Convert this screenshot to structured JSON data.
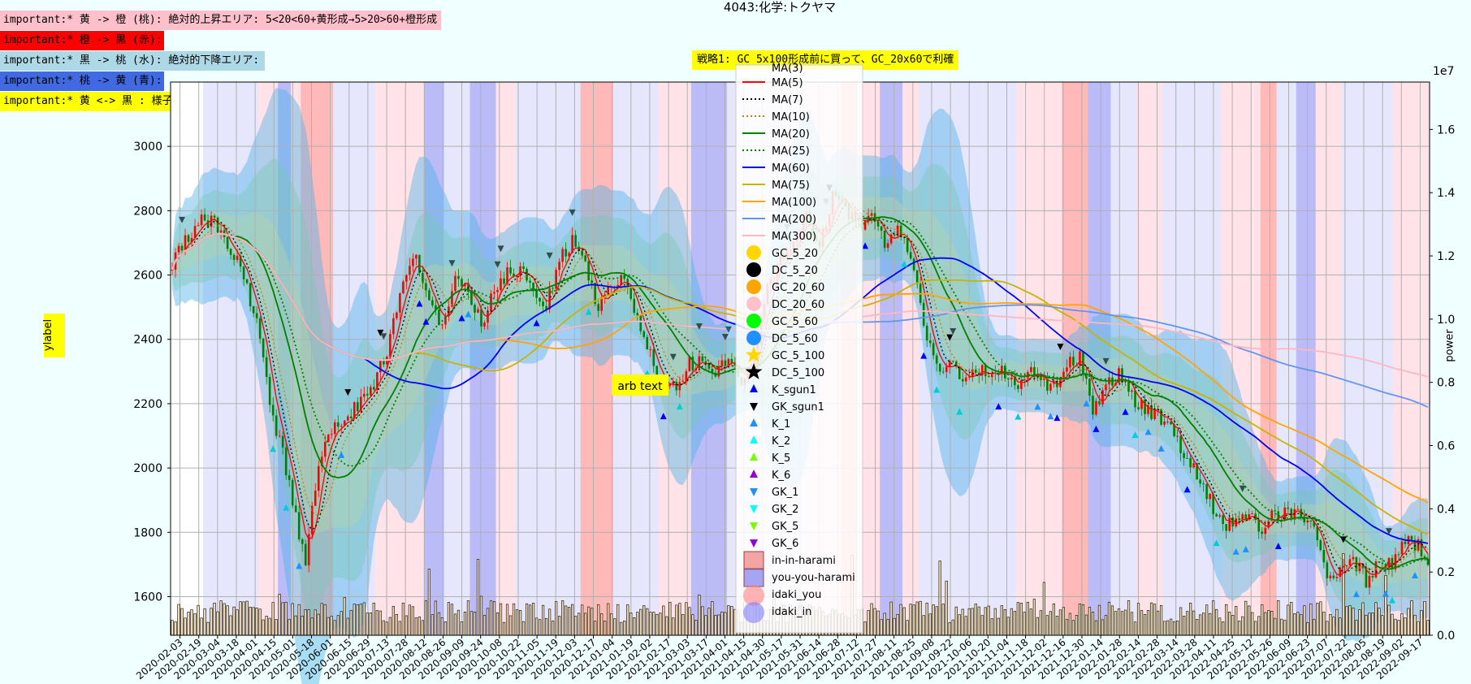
{
  "title": "4043:化学:トクヤマ",
  "notes": [
    {
      "text": "important:* 黄 -> 橙 (桃): 絶対的上昇エリア: 5<20<60+黄形成→5>20>60+橙形成",
      "bg": "#ffc0cb"
    },
    {
      "text": "important:* 橙 -> 黒 (赤):",
      "bg": "#ff0000"
    },
    {
      "text": "important:* 黒 -> 桃 (水): 絶対的下降エリア:",
      "bg": "#add8e6"
    },
    {
      "text": "important:* 桃 -> 黄 (青):",
      "bg": "#4169e1"
    },
    {
      "text": "important:* 黄 <-> 黒 : 様子見:",
      "bg": "#ffff00"
    }
  ],
  "strategy_text": "戦略1: GC_5x100形成前に買って、GC_20x60で利確",
  "annotation": "arb text",
  "ylabel": "ylabel",
  "y2label": "power",
  "y2_exponent": "1e7",
  "chart_data": {
    "type": "line",
    "ylim": [
      1480,
      3200
    ],
    "y2lim": [
      0,
      1.75
    ],
    "yticks": [
      1600,
      1800,
      2000,
      2200,
      2400,
      2600,
      2800,
      3000
    ],
    "y2ticks": [
      "0.0",
      "0.2",
      "0.4",
      "0.6",
      "0.8",
      "1.0",
      "1.2",
      "1.4",
      "1.6"
    ],
    "xtick_labels": [
      "2020-02-03",
      "2020-02-19",
      "2020-03-04",
      "2020-03-18",
      "2020-04-01",
      "2020-04-15",
      "2020-05-01",
      "2020-05-18",
      "2020-06-01",
      "2020-06-15",
      "2020-06-29",
      "2020-07-13",
      "2020-07-28",
      "2020-08-12",
      "2020-08-26",
      "2020-09-09",
      "2020-09-24",
      "2020-10-08",
      "2020-10-22",
      "2020-11-05",
      "2020-11-19",
      "2020-12-03",
      "2020-12-17",
      "2021-01-04",
      "2021-01-19",
      "2021-02-02",
      "2021-02-17",
      "2021-03-03",
      "2021-03-17",
      "2021-04-01",
      "2021-04-15",
      "2021-04-30",
      "2021-05-17",
      "2021-05-31",
      "2021-06-14",
      "2021-06-28",
      "2021-07-12",
      "2021-07-27",
      "2021-08-11",
      "2021-08-25",
      "2021-09-08",
      "2021-09-22",
      "2021-10-06",
      "2021-10-20",
      "2021-11-04",
      "2021-11-18",
      "2021-12-02",
      "2021-12-16",
      "2021-12-30",
      "2022-01-14",
      "2022-01-28",
      "2022-02-14",
      "2022-02-28",
      "2022-03-14",
      "2022-03-28",
      "2022-04-11",
      "2022-04-25",
      "2022-05-12",
      "2022-05-26",
      "2022-06-09",
      "2022-06-23",
      "2022-07-07",
      "2022-07-22",
      "2022-08-05",
      "2022-08-19",
      "2022-09-02",
      "2022-09-17"
    ],
    "close_anchors": [
      [
        0,
        2640
      ],
      [
        4,
        2700
      ],
      [
        8,
        2760
      ],
      [
        12,
        2780
      ],
      [
        16,
        2720
      ],
      [
        22,
        2600
      ],
      [
        26,
        2450
      ],
      [
        30,
        2200
      ],
      [
        35,
        2000
      ],
      [
        38,
        1850
      ],
      [
        41,
        1700
      ],
      [
        44,
        1950
      ],
      [
        48,
        2100
      ],
      [
        53,
        2150
      ],
      [
        58,
        2200
      ],
      [
        62,
        2250
      ],
      [
        67,
        2400
      ],
      [
        71,
        2600
      ],
      [
        75,
        2650
      ],
      [
        79,
        2500
      ],
      [
        83,
        2450
      ],
      [
        87,
        2580
      ],
      [
        91,
        2550
      ],
      [
        95,
        2450
      ],
      [
        99,
        2550
      ],
      [
        103,
        2600
      ],
      [
        107,
        2620
      ],
      [
        111,
        2560
      ],
      [
        115,
        2500
      ],
      [
        119,
        2650
      ],
      [
        123,
        2700
      ],
      [
        127,
        2620
      ],
      [
        131,
        2500
      ],
      [
        135,
        2560
      ],
      [
        139,
        2580
      ],
      [
        143,
        2450
      ],
      [
        147,
        2350
      ],
      [
        151,
        2250
      ],
      [
        155,
        2260
      ],
      [
        159,
        2330
      ],
      [
        163,
        2320
      ],
      [
        167,
        2300
      ],
      [
        171,
        2330
      ],
      [
        175,
        2280
      ],
      [
        179,
        2350
      ],
      [
        183,
        2560
      ],
      [
        187,
        2650
      ],
      [
        191,
        2700
      ],
      [
        195,
        2780
      ],
      [
        199,
        2700
      ],
      [
        203,
        2850
      ],
      [
        207,
        2800
      ],
      [
        211,
        2750
      ],
      [
        215,
        2800
      ],
      [
        219,
        2700
      ],
      [
        223,
        2750
      ],
      [
        227,
        2650
      ],
      [
        231,
        2450
      ],
      [
        235,
        2300
      ],
      [
        239,
        2320
      ],
      [
        243,
        2280
      ],
      [
        247,
        2320
      ],
      [
        251,
        2280
      ],
      [
        255,
        2300
      ],
      [
        259,
        2250
      ],
      [
        263,
        2300
      ],
      [
        267,
        2280
      ],
      [
        271,
        2250
      ],
      [
        275,
        2320
      ],
      [
        279,
        2350
      ],
      [
        283,
        2180
      ],
      [
        287,
        2250
      ],
      [
        291,
        2300
      ],
      [
        295,
        2220
      ],
      [
        299,
        2180
      ],
      [
        303,
        2160
      ],
      [
        307,
        2120
      ],
      [
        311,
        2050
      ],
      [
        315,
        1980
      ],
      [
        319,
        1900
      ],
      [
        323,
        1820
      ],
      [
        327,
        1830
      ],
      [
        331,
        1840
      ],
      [
        335,
        1820
      ],
      [
        339,
        1860
      ],
      [
        343,
        1860
      ],
      [
        347,
        1870
      ],
      [
        351,
        1800
      ],
      [
        355,
        1680
      ],
      [
        359,
        1680
      ],
      [
        363,
        1720
      ],
      [
        367,
        1650
      ],
      [
        371,
        1700
      ],
      [
        375,
        1700
      ],
      [
        379,
        1780
      ],
      [
        383,
        1760
      ],
      [
        386,
        1720
      ]
    ],
    "n_bars": 387,
    "series": [
      {
        "name": "MA(5)",
        "color": "#ff0000",
        "dash": "",
        "period": 5
      },
      {
        "name": "MA(7)",
        "color": "#000000",
        "dash": "2,3",
        "period": 7
      },
      {
        "name": "MA(10)",
        "color": "#b8860b",
        "dash": "2,3",
        "period": 10
      },
      {
        "name": "MA(20)",
        "color": "#008000",
        "dash": "",
        "period": 20
      },
      {
        "name": "MA(25)",
        "color": "#008000",
        "dash": "2,3",
        "period": 25
      },
      {
        "name": "MA(60)",
        "color": "#0000ff",
        "dash": "",
        "period": 60
      },
      {
        "name": "MA(75)",
        "color": "#c8b400",
        "dash": "",
        "period": 75
      },
      {
        "name": "MA(100)",
        "color": "#ffa500",
        "dash": "",
        "period": 100
      },
      {
        "name": "MA(200)",
        "color": "#6495ed",
        "dash": "",
        "period": 200
      },
      {
        "name": "MA(300)",
        "color": "#ffb6c1",
        "dash": "",
        "period": 300
      }
    ],
    "legend_markers": [
      {
        "name": "GC_5_20",
        "kind": "circle",
        "color": "#ffd700"
      },
      {
        "name": "DC_5_20",
        "kind": "circle",
        "color": "#000000"
      },
      {
        "name": "GC_20_60",
        "kind": "circle",
        "color": "#ffa500"
      },
      {
        "name": "DC_20_60",
        "kind": "circle",
        "color": "#ffc0cb"
      },
      {
        "name": "GC_5_60",
        "kind": "circle",
        "color": "#00ff00"
      },
      {
        "name": "DC_5_60",
        "kind": "circle",
        "color": "#1e90ff"
      },
      {
        "name": "GC_5_100",
        "kind": "star",
        "color": "#ffd700"
      },
      {
        "name": "DC_5_100",
        "kind": "star",
        "color": "#000000"
      },
      {
        "name": "K_sgun1",
        "kind": "tri-up",
        "color": "#0000ff"
      },
      {
        "name": "GK_sgun1",
        "kind": "tri-down",
        "color": "#000000"
      },
      {
        "name": "K_1",
        "kind": "tri-up",
        "color": "#1e90ff"
      },
      {
        "name": "K_2",
        "kind": "tri-up",
        "color": "#00ffff"
      },
      {
        "name": "K_5",
        "kind": "tri-up",
        "color": "#7cfc00"
      },
      {
        "name": "K_6",
        "kind": "tri-up",
        "color": "#9400d3"
      },
      {
        "name": "GK_1",
        "kind": "tri-down",
        "color": "#1e90ff"
      },
      {
        "name": "GK_2",
        "kind": "tri-down",
        "color": "#00ffff"
      },
      {
        "name": "GK_5",
        "kind": "tri-down",
        "color": "#7cfc00"
      },
      {
        "name": "GK_6",
        "kind": "tri-down",
        "color": "#9400d3"
      },
      {
        "name": "in-in-harami",
        "kind": "square",
        "color": "#f08080"
      },
      {
        "name": "you-you-harami",
        "kind": "square",
        "color": "#8080f0"
      },
      {
        "name": "idaki_you",
        "kind": "bigcircle",
        "color": "#ff8080"
      },
      {
        "name": "idaki_in",
        "kind": "bigcircle",
        "color": "#8080ff"
      }
    ],
    "bands": [
      {
        "from": 10,
        "to": 17,
        "kind": "lavender"
      },
      {
        "from": 17,
        "to": 27,
        "kind": "lavender"
      },
      {
        "from": 27,
        "to": 33,
        "kind": "pink"
      },
      {
        "from": 33,
        "to": 37,
        "kind": "blue"
      },
      {
        "from": 37,
        "to": 40,
        "kind": "pink"
      },
      {
        "from": 40,
        "to": 50,
        "kind": "red"
      },
      {
        "from": 50,
        "to": 63,
        "kind": "lavender"
      },
      {
        "from": 63,
        "to": 78,
        "kind": "pink"
      },
      {
        "from": 78,
        "to": 84,
        "kind": "blue"
      },
      {
        "from": 84,
        "to": 92,
        "kind": "lavender"
      },
      {
        "from": 92,
        "to": 100,
        "kind": "blue"
      },
      {
        "from": 100,
        "to": 106,
        "kind": "pink"
      },
      {
        "from": 106,
        "to": 126,
        "kind": "lavender"
      },
      {
        "from": 126,
        "to": 136,
        "kind": "red"
      },
      {
        "from": 136,
        "to": 150,
        "kind": "lavender"
      },
      {
        "from": 150,
        "to": 160,
        "kind": "pink"
      },
      {
        "from": 160,
        "to": 171,
        "kind": "blue"
      },
      {
        "from": 171,
        "to": 196,
        "kind": "lavender"
      },
      {
        "from": 196,
        "to": 206,
        "kind": "pink"
      },
      {
        "from": 206,
        "to": 211,
        "kind": "red"
      },
      {
        "from": 211,
        "to": 218,
        "kind": "pink"
      },
      {
        "from": 218,
        "to": 225,
        "kind": "blue"
      },
      {
        "from": 225,
        "to": 230,
        "kind": "pink"
      },
      {
        "from": 230,
        "to": 260,
        "kind": "lavender"
      },
      {
        "from": 260,
        "to": 274,
        "kind": "pink"
      },
      {
        "from": 274,
        "to": 282,
        "kind": "red"
      },
      {
        "from": 282,
        "to": 289,
        "kind": "blue"
      },
      {
        "from": 289,
        "to": 297,
        "kind": "lavender"
      },
      {
        "from": 297,
        "to": 305,
        "kind": "pink"
      },
      {
        "from": 305,
        "to": 323,
        "kind": "lavender"
      },
      {
        "from": 323,
        "to": 335,
        "kind": "pink"
      },
      {
        "from": 335,
        "to": 340,
        "kind": "red"
      },
      {
        "from": 340,
        "to": 346,
        "kind": "lavender"
      },
      {
        "from": 346,
        "to": 352,
        "kind": "blue"
      },
      {
        "from": 352,
        "to": 360,
        "kind": "pink"
      },
      {
        "from": 360,
        "to": 376,
        "kind": "lavender"
      },
      {
        "from": 376,
        "to": 387,
        "kind": "pink"
      }
    ],
    "grid": true,
    "legend_position": "upper-center"
  }
}
